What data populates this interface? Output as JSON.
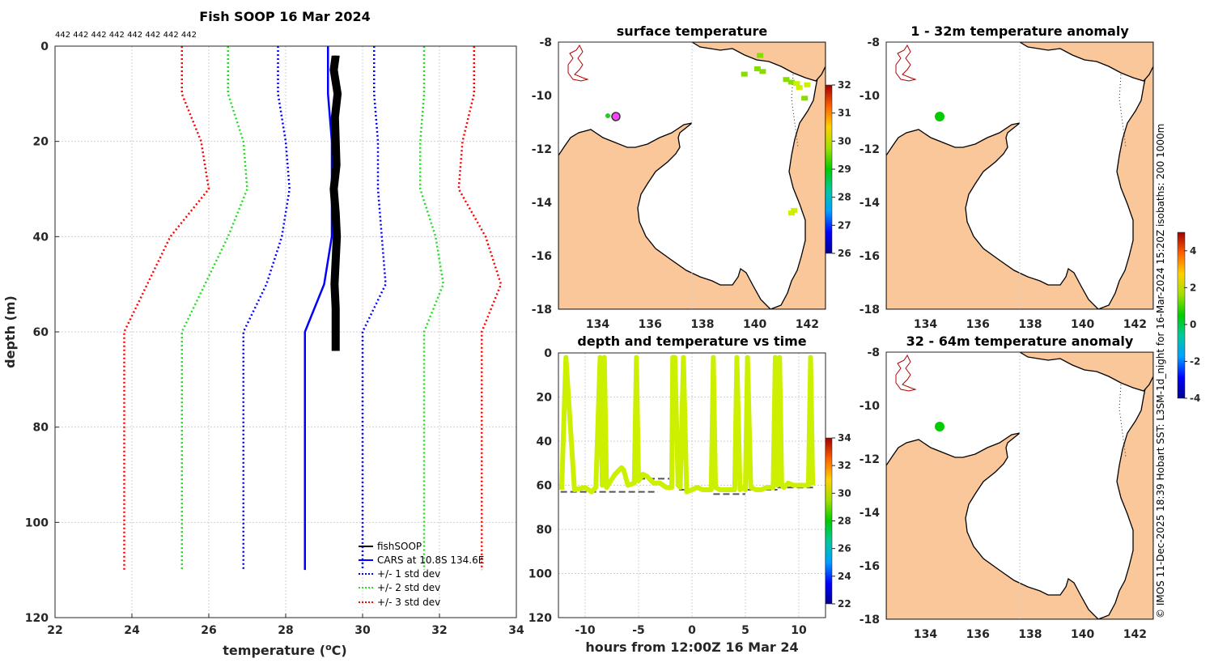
{
  "colors": {
    "land": "#f9c799",
    "cars": "#0000ff",
    "std1": "#0000ff",
    "std2": "#22dd22",
    "std3": "#ff0000",
    "fish": "#000000",
    "sensor": "#ccf000",
    "anom": "#00cc00"
  },
  "chart_data": [
    {
      "id": "profile",
      "type": "line",
      "title": "Fish SOOP 16 Mar 2024",
      "counts_label": "442 442 442 442 442 442 442 442",
      "xlabel": "temperature (°C)",
      "xlabel_parts": [
        "temperature (",
        "o",
        "C)"
      ],
      "ylabel": "depth (m)",
      "xlim": [
        22,
        34
      ],
      "ylim": [
        0,
        120
      ],
      "xticks": [
        "22",
        "24",
        "26",
        "28",
        "30",
        "32",
        "34"
      ],
      "yticks": [
        "0",
        "20",
        "40",
        "60",
        "80",
        "100",
        "120"
      ],
      "legend": [
        "fishSOOP",
        "CARS at 10.8S 134.6E",
        "+/- 1 std dev",
        "+/- 2 std dev",
        "+/- 3 std dev"
      ],
      "series": [
        {
          "name": "fishSOOP",
          "x": [
            29.3,
            29.25,
            29.35,
            29.28,
            29.3,
            29.32,
            29.25,
            29.3,
            29.33,
            29.3,
            29.27,
            29.3,
            29.3
          ],
          "y": [
            2,
            5,
            10,
            15,
            20,
            25,
            30,
            35,
            40,
            45,
            50,
            55,
            64
          ]
        },
        {
          "name": "CARS at 10.8S 134.6E",
          "x": [
            29.1,
            29.1,
            29.2,
            29.2,
            29.2,
            29.0,
            28.5,
            28.5,
            28.5
          ],
          "y": [
            0,
            10,
            20,
            30,
            40,
            50,
            60,
            80,
            110
          ]
        },
        {
          "name": "+1 std",
          "x": [
            30.3,
            30.3,
            30.4,
            30.4,
            30.5,
            30.6,
            30.0,
            30.0,
            30.0
          ],
          "y": [
            0,
            10,
            20,
            30,
            40,
            50,
            60,
            80,
            110
          ]
        },
        {
          "name": "-1 std",
          "x": [
            27.8,
            27.8,
            28.0,
            28.1,
            27.9,
            27.5,
            26.9,
            26.9,
            26.9
          ],
          "y": [
            0,
            10,
            20,
            30,
            40,
            50,
            60,
            80,
            110
          ]
        },
        {
          "name": "+2 std",
          "x": [
            31.6,
            31.6,
            31.5,
            31.5,
            31.9,
            32.1,
            31.6,
            31.6,
            31.6
          ],
          "y": [
            0,
            10,
            20,
            30,
            40,
            50,
            60,
            80,
            110
          ]
        },
        {
          "name": "-2 std",
          "x": [
            26.5,
            26.5,
            26.9,
            27.0,
            26.5,
            25.9,
            25.3,
            25.3,
            25.3
          ],
          "y": [
            0,
            10,
            20,
            30,
            40,
            50,
            60,
            80,
            110
          ]
        },
        {
          "name": "+3 std",
          "x": [
            32.9,
            32.9,
            32.6,
            32.5,
            33.2,
            33.6,
            33.1,
            33.1,
            33.1
          ],
          "y": [
            0,
            10,
            20,
            30,
            40,
            50,
            60,
            80,
            110
          ]
        },
        {
          "name": "-3 std",
          "x": [
            25.3,
            25.3,
            25.8,
            26.0,
            25.0,
            24.4,
            23.8,
            23.8,
            23.8
          ],
          "y": [
            0,
            10,
            20,
            30,
            40,
            50,
            60,
            80,
            110
          ]
        }
      ]
    },
    {
      "id": "surface",
      "type": "heatmap",
      "title": "surface temperature",
      "xticks": [
        "134",
        "136",
        "138",
        "140",
        "142"
      ],
      "yticks": [
        "-8",
        "-10",
        "-12",
        "-14",
        "-16",
        "-18"
      ],
      "xlim": [
        132.5,
        142.7
      ],
      "ylim": [
        -18,
        -8
      ],
      "colorbar": {
        "min": 26,
        "max": 32,
        "ticks": [
          "32",
          "31",
          "30",
          "29",
          "28",
          "27",
          "26"
        ]
      },
      "cells": [
        {
          "lon": 141.2,
          "lat": -9.4,
          "temp": 29.2
        },
        {
          "lon": 141.4,
          "lat": -9.5,
          "temp": 29.5
        },
        {
          "lon": 141.6,
          "lat": -9.55,
          "temp": 29.6
        },
        {
          "lon": 141.7,
          "lat": -9.7,
          "temp": 29.7
        },
        {
          "lon": 142.0,
          "lat": -9.6,
          "temp": 29.6
        },
        {
          "lon": 140.1,
          "lat": -9.0,
          "temp": 29.0
        },
        {
          "lon": 140.3,
          "lat": -9.1,
          "temp": 28.9
        },
        {
          "lon": 140.2,
          "lat": -8.5,
          "temp": 29.1
        },
        {
          "lon": 139.6,
          "lat": -9.2,
          "temp": 29.2
        },
        {
          "lon": 141.9,
          "lat": -10.1,
          "temp": 29.3
        },
        {
          "lon": 141.5,
          "lat": -14.3,
          "temp": 29.7
        },
        {
          "lon": 141.4,
          "lat": -14.4,
          "temp": 29.8
        }
      ],
      "track": {
        "lon": 134.6,
        "lat": -10.8
      }
    },
    {
      "id": "timedepth",
      "type": "scatter",
      "title": "depth and temperature vs time",
      "xlabel": "hours from 12:00Z 16 Mar 24",
      "xticks": [
        "-10",
        "-5",
        "0",
        "5",
        "10"
      ],
      "yticks": [
        "0",
        "20",
        "40",
        "60",
        "80",
        "100",
        "120"
      ],
      "xlim": [
        -12.5,
        12.5
      ],
      "ylim": [
        0,
        120
      ],
      "colorbar": {
        "min": 22,
        "max": 34,
        "ticks": [
          "34",
          "32",
          "30",
          "28",
          "26",
          "24",
          "22"
        ]
      },
      "bottom_depth": [
        {
          "x0": -12.3,
          "x1": -3.2,
          "y": 63
        },
        {
          "x0": -5.0,
          "x1": -1.8,
          "y": 57
        },
        {
          "x0": -1.2,
          "x1": 2.0,
          "y": 62
        },
        {
          "x0": 2.0,
          "x1": 5.0,
          "y": 64
        },
        {
          "x0": 5.0,
          "x1": 8.0,
          "y": 62
        },
        {
          "x0": 8.0,
          "x1": 11.5,
          "y": 61
        }
      ],
      "trace": {
        "x": [
          -12.2,
          -11.8,
          -11.0,
          -10.0,
          -9.4,
          -9.0,
          -8.6,
          -8.4,
          -8.2,
          -8.0,
          -7.6,
          -7.2,
          -6.8,
          -6.6,
          -6.4,
          -6.0,
          -5.4,
          -5.2,
          -5.0,
          -4.6,
          -4.2,
          -3.6,
          -3.0,
          -2.4,
          -1.9,
          -1.8,
          -1.6,
          -1.3,
          -1.1,
          -0.8,
          -0.5,
          0.0,
          0.5,
          1.0,
          1.4,
          1.8,
          2.0,
          2.2,
          2.6,
          3.0,
          3.5,
          4.0,
          4.2,
          4.5,
          4.8,
          5.0,
          5.2,
          5.5,
          6.0,
          6.5,
          7.0,
          7.6,
          7.8,
          8.0,
          8.2,
          8.4,
          8.6,
          8.8,
          9.0,
          9.5,
          10.0,
          10.5,
          10.9,
          11.1,
          11.3
        ],
        "y": [
          62,
          2,
          62,
          61,
          63,
          61,
          2,
          60,
          2,
          61,
          58,
          55,
          53,
          52,
          53,
          60,
          59,
          2,
          58,
          55,
          56,
          59,
          59,
          61,
          61,
          2,
          2,
          60,
          61,
          2,
          63,
          62,
          61,
          62,
          62,
          62,
          2,
          61,
          62,
          62,
          62,
          62,
          2,
          62,
          61,
          62,
          2,
          61,
          62,
          62,
          61,
          61,
          2,
          60,
          2,
          60,
          61,
          60,
          59,
          60,
          60,
          60,
          60,
          2,
          60
        ]
      },
      "trace_temp": 30
    },
    {
      "id": "anom1",
      "type": "heatmap",
      "title": "1 - 32m temperature anomaly",
      "xticks": [
        "134",
        "136",
        "138",
        "140",
        "142"
      ],
      "yticks": [
        "-8",
        "-10",
        "-12",
        "-14",
        "-16",
        "-18"
      ],
      "colorbar": {
        "min": -4,
        "max": 5,
        "ticks": [
          "4",
          "2",
          "0",
          "-2",
          "-4"
        ]
      },
      "point": {
        "lon": 134.6,
        "lat": -10.8,
        "anom": 0.2
      }
    },
    {
      "id": "anom2",
      "type": "heatmap",
      "title": "32 - 64m temperature anomaly",
      "xticks": [
        "134",
        "136",
        "138",
        "140",
        "142"
      ],
      "yticks": [
        "-8",
        "-10",
        "-12",
        "-14",
        "-16",
        "-18"
      ],
      "point": {
        "lon": 134.6,
        "lat": -10.8,
        "anom": 0.2
      }
    }
  ],
  "credit": "© IMOS 11-Dec-2025 18:39 Hobart SST: L3SM-1d_night for 16-Mar-2024 15:20Z isobaths: 200  1000m"
}
